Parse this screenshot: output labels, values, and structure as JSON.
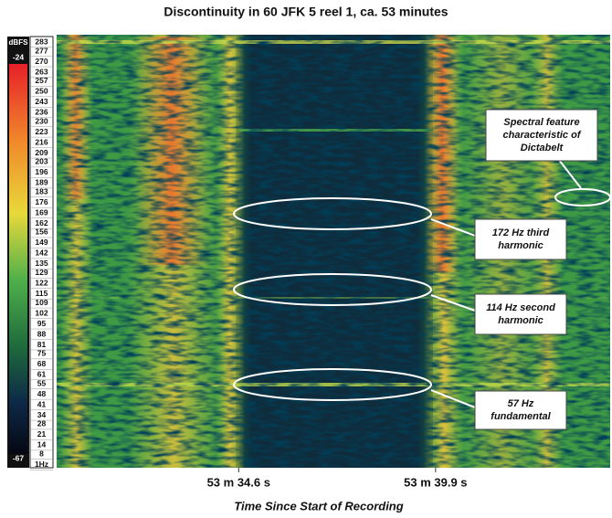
{
  "chart_data": {
    "type": "spectrogram",
    "title": "Discontinuity in 60 JFK 5 reel 1, ca. 53 minutes",
    "xlabel": "Time Since Start of Recording",
    "xlim": [
      3209.7,
      3224.6
    ],
    "xticks": [
      {
        "value": 3214.6,
        "label": "53 m 34.6 s"
      },
      {
        "value": 3219.9,
        "label": "53 m 39.9 s"
      }
    ],
    "ylim": [
      -1,
      288
    ],
    "yticks": [
      {
        "value": 1,
        "label": "1Hz"
      },
      8,
      14,
      21,
      28,
      34,
      41,
      48,
      55,
      61,
      68,
      75,
      81,
      88,
      95,
      102,
      109,
      115,
      122,
      129,
      135,
      142,
      149,
      156,
      162,
      169,
      176,
      183,
      189,
      196,
      203,
      209,
      216,
      223,
      230,
      236,
      243,
      250,
      257,
      263,
      270,
      277,
      283
    ],
    "colorbar": {
      "label": "dBFS",
      "clim": [
        -24,
        -67
      ],
      "ticks": [
        -24,
        -67
      ]
    },
    "annotations": [
      {
        "lines": [
          "Spectral feature",
          "characteristic of",
          "Dictabelt"
        ]
      },
      {
        "lines": [
          "172 Hz third",
          "harmonic"
        ]
      },
      {
        "lines": [
          "114 Hz second",
          "harmonic"
        ]
      },
      {
        "lines": [
          "57 Hz",
          "fundamental"
        ]
      }
    ]
  }
}
